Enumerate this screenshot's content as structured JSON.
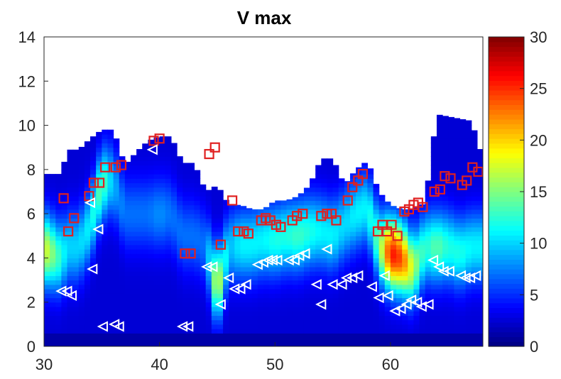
{
  "chart_data": {
    "type": "heatmap",
    "title": "V max",
    "xlabel": "",
    "ylabel": "",
    "xlim": [
      30,
      68
    ],
    "ylim": [
      0,
      14
    ],
    "xticks": [
      30,
      40,
      50,
      60
    ],
    "yticks": [
      0,
      2,
      4,
      6,
      8,
      10,
      12,
      14
    ],
    "colorbar": {
      "range": [
        0,
        30
      ],
      "ticks": [
        0,
        5,
        10,
        15,
        20,
        25,
        30
      ],
      "colormap": "jet"
    },
    "heatmap_profiles": [
      {
        "x": 30.0,
        "top": 7.8,
        "max_z": 4.4,
        "max_value": 18
      },
      {
        "x": 31.5,
        "top": 7.8,
        "max_z": 4.0,
        "max_value": 12
      },
      {
        "x": 32.0,
        "top": 8.9,
        "max_z": 4.5,
        "max_value": 10
      },
      {
        "x": 33.0,
        "top": 8.9,
        "max_z": 4.5,
        "max_value": 10
      },
      {
        "x": 34.0,
        "top": 9.4,
        "max_z": 5.5,
        "max_value": 11
      },
      {
        "x": 35.0,
        "top": 9.8,
        "max_z": 7.4,
        "max_value": 14
      },
      {
        "x": 36.0,
        "top": 9.8,
        "max_z": 7.5,
        "max_value": 9
      },
      {
        "x": 37.0,
        "top": 8.2,
        "max_z": 6.0,
        "max_value": 7
      },
      {
        "x": 38.0,
        "top": 8.8,
        "max_z": 6.0,
        "max_value": 7
      },
      {
        "x": 39.0,
        "top": 9.3,
        "max_z": 6.0,
        "max_value": 7
      },
      {
        "x": 40.0,
        "top": 9.5,
        "max_z": 6.0,
        "max_value": 8
      },
      {
        "x": 41.0,
        "top": 9.5,
        "max_z": 6.0,
        "max_value": 7
      },
      {
        "x": 42.0,
        "top": 8.3,
        "max_z": 5.0,
        "max_value": 7
      },
      {
        "x": 43.0,
        "top": 8.3,
        "max_z": 5.0,
        "max_value": 7
      },
      {
        "x": 44.0,
        "top": 7.0,
        "max_z": 4.5,
        "max_value": 7
      },
      {
        "x": 45.0,
        "top": 7.3,
        "max_z": 2.5,
        "max_value": 18
      },
      {
        "x": 46.0,
        "top": 6.4,
        "max_z": 4.5,
        "max_value": 9
      },
      {
        "x": 47.0,
        "top": 6.4,
        "max_z": 4.6,
        "max_value": 11
      },
      {
        "x": 48.0,
        "top": 6.2,
        "max_z": 4.6,
        "max_value": 11
      },
      {
        "x": 49.0,
        "top": 6.2,
        "max_z": 4.8,
        "max_value": 11
      },
      {
        "x": 50.0,
        "top": 6.6,
        "max_z": 4.8,
        "max_value": 12
      },
      {
        "x": 51.0,
        "top": 6.6,
        "max_z": 5.0,
        "max_value": 12
      },
      {
        "x": 52.0,
        "top": 6.8,
        "max_z": 5.0,
        "max_value": 13
      },
      {
        "x": 53.0,
        "top": 7.3,
        "max_z": 5.2,
        "max_value": 12
      },
      {
        "x": 54.0,
        "top": 8.5,
        "max_z": 5.2,
        "max_value": 11
      },
      {
        "x": 55.0,
        "top": 8.5,
        "max_z": 5.0,
        "max_value": 11
      },
      {
        "x": 56.0,
        "top": 7.3,
        "max_z": 5.5,
        "max_value": 10
      },
      {
        "x": 57.0,
        "top": 8.0,
        "max_z": 6.0,
        "max_value": 11
      },
      {
        "x": 58.0,
        "top": 8.4,
        "max_z": 6.3,
        "max_value": 11
      },
      {
        "x": 59.0,
        "top": 7.0,
        "max_z": 4.5,
        "max_value": 14
      },
      {
        "x": 60.0,
        "top": 6.4,
        "max_z": 4.2,
        "max_value": 26
      },
      {
        "x": 61.0,
        "top": 6.2,
        "max_z": 4.0,
        "max_value": 24
      },
      {
        "x": 62.0,
        "top": 6.2,
        "max_z": 3.5,
        "max_value": 16
      },
      {
        "x": 63.0,
        "top": 6.5,
        "max_z": 4.5,
        "max_value": 12
      },
      {
        "x": 64.0,
        "top": 10.5,
        "max_z": 4.5,
        "max_value": 14
      },
      {
        "x": 65.0,
        "top": 10.4,
        "max_z": 4.5,
        "max_value": 12
      },
      {
        "x": 66.0,
        "top": 10.3,
        "max_z": 4.2,
        "max_value": 12
      },
      {
        "x": 67.0,
        "top": 10.2,
        "max_z": 4.5,
        "max_value": 11
      },
      {
        "x": 68.0,
        "top": 8.5,
        "max_z": 4.5,
        "max_value": 11
      }
    ],
    "square_markers": [
      {
        "x": 31.7,
        "y": 6.7
      },
      {
        "x": 32.1,
        "y": 5.2
      },
      {
        "x": 32.6,
        "y": 5.8
      },
      {
        "x": 33.9,
        "y": 6.8
      },
      {
        "x": 34.3,
        "y": 7.4
      },
      {
        "x": 34.8,
        "y": 7.4
      },
      {
        "x": 35.3,
        "y": 8.1
      },
      {
        "x": 36.2,
        "y": 8.1
      },
      {
        "x": 36.7,
        "y": 8.2
      },
      {
        "x": 39.5,
        "y": 9.3
      },
      {
        "x": 40.0,
        "y": 9.4
      },
      {
        "x": 42.2,
        "y": 4.2
      },
      {
        "x": 42.7,
        "y": 4.2
      },
      {
        "x": 44.3,
        "y": 8.7
      },
      {
        "x": 44.8,
        "y": 9.0
      },
      {
        "x": 45.3,
        "y": 4.6
      },
      {
        "x": 46.3,
        "y": 6.6
      },
      {
        "x": 46.8,
        "y": 5.2
      },
      {
        "x": 47.3,
        "y": 5.2
      },
      {
        "x": 47.7,
        "y": 5.1
      },
      {
        "x": 48.8,
        "y": 5.7
      },
      {
        "x": 49.2,
        "y": 5.8
      },
      {
        "x": 49.6,
        "y": 5.7
      },
      {
        "x": 50.1,
        "y": 5.5
      },
      {
        "x": 50.5,
        "y": 5.4
      },
      {
        "x": 51.5,
        "y": 5.7
      },
      {
        "x": 51.9,
        "y": 5.9
      },
      {
        "x": 52.4,
        "y": 6.0
      },
      {
        "x": 54.0,
        "y": 5.9
      },
      {
        "x": 54.5,
        "y": 6.0
      },
      {
        "x": 54.9,
        "y": 6.0
      },
      {
        "x": 55.3,
        "y": 5.7
      },
      {
        "x": 56.3,
        "y": 6.6
      },
      {
        "x": 56.7,
        "y": 7.2
      },
      {
        "x": 57.2,
        "y": 7.5
      },
      {
        "x": 57.6,
        "y": 7.8
      },
      {
        "x": 58.9,
        "y": 5.2
      },
      {
        "x": 59.3,
        "y": 5.5
      },
      {
        "x": 59.7,
        "y": 5.2
      },
      {
        "x": 60.1,
        "y": 5.5
      },
      {
        "x": 60.6,
        "y": 5.0
      },
      {
        "x": 61.2,
        "y": 6.1
      },
      {
        "x": 61.6,
        "y": 6.2
      },
      {
        "x": 62.0,
        "y": 6.4
      },
      {
        "x": 62.4,
        "y": 6.5
      },
      {
        "x": 62.8,
        "y": 6.3
      },
      {
        "x": 63.8,
        "y": 7.0
      },
      {
        "x": 64.3,
        "y": 7.1
      },
      {
        "x": 64.7,
        "y": 7.7
      },
      {
        "x": 65.2,
        "y": 7.6
      },
      {
        "x": 66.2,
        "y": 7.3
      },
      {
        "x": 66.6,
        "y": 7.5
      },
      {
        "x": 67.1,
        "y": 8.1
      },
      {
        "x": 67.6,
        "y": 7.9
      }
    ],
    "triangle_markers": [
      {
        "x": 31.5,
        "y": 2.5
      },
      {
        "x": 32.0,
        "y": 2.5
      },
      {
        "x": 32.4,
        "y": 2.3
      },
      {
        "x": 34.0,
        "y": 6.5
      },
      {
        "x": 34.2,
        "y": 3.5
      },
      {
        "x": 34.7,
        "y": 5.3
      },
      {
        "x": 35.1,
        "y": 0.9
      },
      {
        "x": 36.1,
        "y": 1.0
      },
      {
        "x": 36.5,
        "y": 0.9
      },
      {
        "x": 39.4,
        "y": 8.9
      },
      {
        "x": 42.0,
        "y": 0.9
      },
      {
        "x": 42.5,
        "y": 0.9
      },
      {
        "x": 44.1,
        "y": 3.6
      },
      {
        "x": 44.6,
        "y": 3.6
      },
      {
        "x": 45.3,
        "y": 1.9
      },
      {
        "x": 46.0,
        "y": 3.1
      },
      {
        "x": 46.5,
        "y": 2.6
      },
      {
        "x": 47.0,
        "y": 2.6
      },
      {
        "x": 47.5,
        "y": 2.8
      },
      {
        "x": 48.5,
        "y": 3.7
      },
      {
        "x": 49.0,
        "y": 3.8
      },
      {
        "x": 49.4,
        "y": 3.9
      },
      {
        "x": 49.8,
        "y": 3.9
      },
      {
        "x": 50.2,
        "y": 3.9
      },
      {
        "x": 51.2,
        "y": 3.9
      },
      {
        "x": 51.7,
        "y": 3.9
      },
      {
        "x": 52.1,
        "y": 4.1
      },
      {
        "x": 52.6,
        "y": 4.2
      },
      {
        "x": 53.6,
        "y": 2.8
      },
      {
        "x": 54.0,
        "y": 1.9
      },
      {
        "x": 54.5,
        "y": 4.4
      },
      {
        "x": 55.0,
        "y": 2.8
      },
      {
        "x": 55.8,
        "y": 2.8
      },
      {
        "x": 56.2,
        "y": 3.1
      },
      {
        "x": 56.7,
        "y": 3.1
      },
      {
        "x": 57.2,
        "y": 3.2
      },
      {
        "x": 58.4,
        "y": 2.7
      },
      {
        "x": 59.0,
        "y": 2.2
      },
      {
        "x": 59.5,
        "y": 3.2
      },
      {
        "x": 59.8,
        "y": 2.3
      },
      {
        "x": 60.4,
        "y": 1.6
      },
      {
        "x": 60.9,
        "y": 1.7
      },
      {
        "x": 61.4,
        "y": 1.9
      },
      {
        "x": 61.8,
        "y": 2.1
      },
      {
        "x": 62.3,
        "y": 2.0
      },
      {
        "x": 62.7,
        "y": 1.8
      },
      {
        "x": 63.3,
        "y": 1.9
      },
      {
        "x": 63.7,
        "y": 3.9
      },
      {
        "x": 64.2,
        "y": 3.6
      },
      {
        "x": 64.6,
        "y": 3.4
      },
      {
        "x": 65.1,
        "y": 3.4
      },
      {
        "x": 66.1,
        "y": 3.2
      },
      {
        "x": 66.5,
        "y": 3.1
      },
      {
        "x": 66.9,
        "y": 3.1
      },
      {
        "x": 67.4,
        "y": 3.2
      }
    ]
  }
}
